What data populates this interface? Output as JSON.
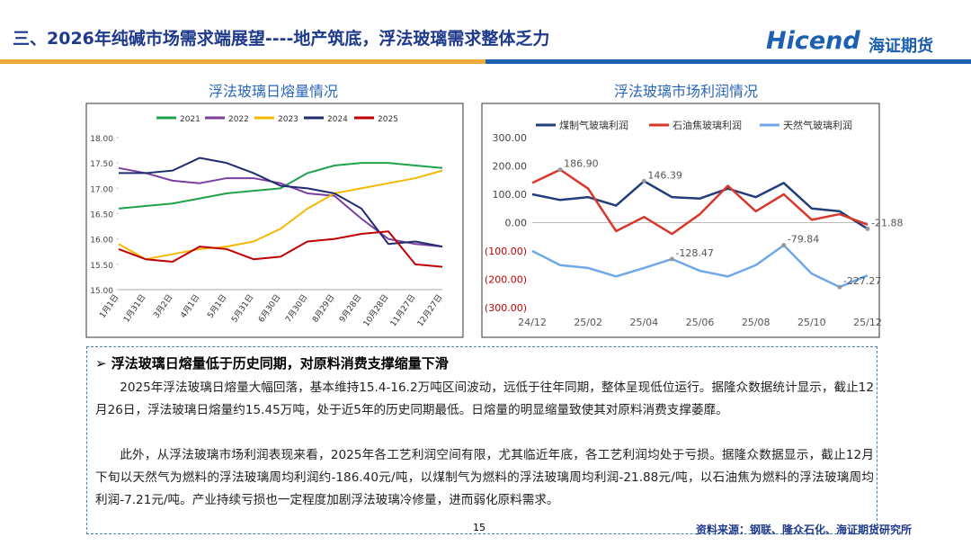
{
  "header": {
    "title": "三、2026年纯碱市场需求端展望----地产筑底，浮法玻璃需求整体乏力",
    "logo": "Hicend",
    "logo_cn": "海证期货"
  },
  "chart_data": [
    {
      "type": "line",
      "title": "浮法玻璃日熔量情况",
      "categories": [
        "1月1日",
        "1月31日",
        "3月2日",
        "4月1日",
        "5月1日",
        "5月31日",
        "6月30日",
        "7月30日",
        "8月29日",
        "9月28日",
        "10月28日",
        "11月27日",
        "12月27日"
      ],
      "series": [
        {
          "name": "2021",
          "color": "#1fa24a",
          "values": [
            16.6,
            16.65,
            16.7,
            16.8,
            16.9,
            16.95,
            17.0,
            17.3,
            17.45,
            17.5,
            17.5,
            17.45,
            17.4
          ]
        },
        {
          "name": "2022",
          "color": "#7b3fa0",
          "values": [
            17.4,
            17.3,
            17.15,
            17.1,
            17.2,
            17.2,
            17.1,
            16.9,
            16.85,
            16.4,
            16.0,
            15.9,
            15.85
          ]
        },
        {
          "name": "2023",
          "color": "#f5b800",
          "values": [
            15.9,
            15.6,
            15.7,
            15.8,
            15.85,
            15.95,
            16.2,
            16.6,
            16.9,
            17.0,
            17.1,
            17.2,
            17.35
          ]
        },
        {
          "name": "2024",
          "color": "#1f2d6e",
          "values": [
            17.3,
            17.3,
            17.35,
            17.6,
            17.5,
            17.3,
            17.05,
            17.0,
            16.9,
            16.6,
            15.9,
            15.95,
            15.85
          ]
        },
        {
          "name": "2025",
          "color": "#c00000",
          "values": [
            15.8,
            15.6,
            15.55,
            15.85,
            15.8,
            15.6,
            15.65,
            15.95,
            16.0,
            16.1,
            16.15,
            15.5,
            15.45
          ]
        }
      ],
      "ylim": [
        15,
        18
      ],
      "yticks": [
        {
          "value": 15,
          "label": "15.00"
        },
        {
          "value": 15.5,
          "label": "15.50"
        },
        {
          "value": 16,
          "label": "16.00"
        },
        {
          "value": 16.5,
          "label": "16.50"
        },
        {
          "value": 17,
          "label": "17.00"
        },
        {
          "value": 17.5,
          "label": "17.50"
        },
        {
          "value": 18,
          "label": "18.00"
        }
      ]
    },
    {
      "type": "line",
      "title": "浮法玻璃市场利润情况",
      "categories": [
        "24/12",
        null,
        "25/02",
        null,
        "25/04",
        null,
        "25/06",
        null,
        "25/08",
        null,
        "25/10",
        null,
        "25/12"
      ],
      "series": [
        {
          "name": "煤制气玻璃利润",
          "color": "#1f3e7a",
          "values": [
            100,
            80,
            90,
            60,
            146.39,
            90,
            85,
            120,
            90,
            140,
            50,
            40,
            -21.88
          ],
          "value_labels": [
            null,
            null,
            null,
            null,
            "146.39",
            null,
            null,
            null,
            null,
            null,
            null,
            null,
            "-21.88"
          ]
        },
        {
          "name": "石油焦玻璃利润",
          "color": "#d9372a",
          "values": [
            140,
            186.9,
            120,
            -30,
            20,
            -40,
            30,
            130,
            40,
            100,
            10,
            30,
            -7.21
          ],
          "value_labels": [
            null,
            "186.90",
            null,
            null,
            null,
            null,
            null,
            null,
            null,
            null,
            null,
            null,
            null
          ]
        },
        {
          "name": "天然气玻璃利润",
          "color": "#6fa8e8",
          "values": [
            -100,
            -150,
            -160,
            -190,
            -160,
            -128.47,
            -170,
            -190,
            -150,
            -79.84,
            -180,
            -227.27,
            -186.4
          ],
          "value_labels": [
            null,
            null,
            null,
            null,
            null,
            "-128.47",
            null,
            null,
            null,
            "-79.84",
            null,
            "-227.27",
            null
          ]
        }
      ],
      "ylim": [
        -300,
        300
      ],
      "yticks": [
        {
          "value": -300,
          "label": "(300.00)"
        },
        {
          "value": -200,
          "label": "(200.00)"
        },
        {
          "value": -100,
          "label": "(100.00)"
        },
        {
          "value": 0,
          "label": "0.00"
        },
        {
          "value": 100,
          "label": "100.00"
        },
        {
          "value": 200,
          "label": "200.00"
        },
        {
          "value": 300,
          "label": "300.00"
        }
      ]
    }
  ],
  "body": {
    "bullet": "浮法玻璃日熔量低于历史同期，对原料消费支撑缩量下滑",
    "paragraphs": [
      "2025年浮法玻璃日熔量大幅回落，基本维持15.4-16.2万吨区间波动，远低于往年同期，整体呈现低位运行。据隆众数据统计显示，截止12月26日，浮法玻璃日熔量约15.45万吨，处于近5年的历史同期最低。日熔量的明显缩量致使其对原料消费支撑萎靡。",
      "此外，从浮法玻璃市场利润表现来看，2025年各工艺利润空间有限，尤其临近年底，各工艺利润均处于亏损。据隆众数据显示，截止12月下旬以天然气为燃料的浮法玻璃周均利润约-186.40元/吨，以煤制气为燃料的浮法玻璃周均利润-21.88元/吨，以石油焦为燃料的浮法玻璃周均利润-7.21元/吨。产业持续亏损也一定程度加剧浮法玻璃冷修量，进而弱化原料需求。"
    ]
  },
  "footer": {
    "page": "15",
    "source": "资料来源：钢联、隆众石化、海证期货研究所"
  }
}
